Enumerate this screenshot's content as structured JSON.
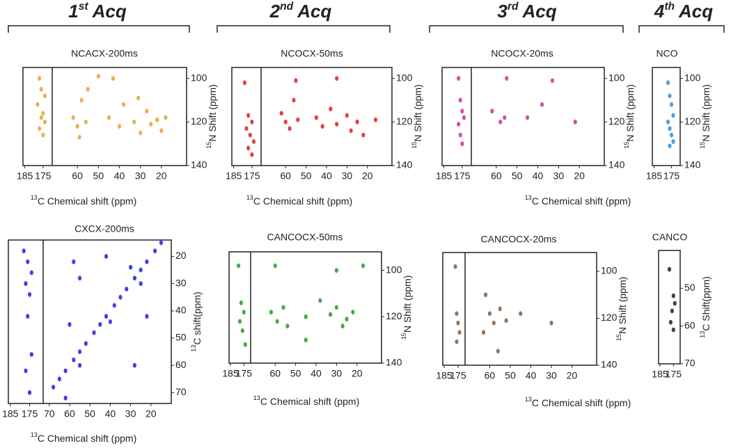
{
  "acq_headers": [
    {
      "number": "1",
      "suffix": "st",
      "text": "Acq"
    },
    {
      "number": "2",
      "suffix": "nd",
      "text": "Acq"
    },
    {
      "number": "3",
      "suffix": "rd",
      "text": "Acq"
    },
    {
      "number": "4",
      "suffix": "th",
      "text": "Acq"
    }
  ],
  "chart_data": [
    {
      "type": "scatter",
      "title": "NCACX-200ms",
      "xlabel": {
        "sup": "13",
        "text": "C Chemical shift (ppm)"
      },
      "ylabel": {
        "sup": "15",
        "text": "N Shift (ppm)"
      },
      "segments": [
        {
          "xlim": [
            186,
            170
          ],
          "xticks": [
            185,
            175
          ]
        },
        {
          "xlim": [
            72,
            8
          ],
          "xticks": [
            60,
            50,
            40,
            30,
            20
          ]
        }
      ],
      "ylim": [
        95,
        140
      ],
      "yticks": [
        100,
        120,
        140
      ],
      "color": "#e8a23a",
      "x": [
        177,
        176,
        174,
        178,
        175,
        176,
        174,
        177,
        175,
        62,
        60,
        58,
        56,
        55,
        45,
        40,
        38,
        33,
        30,
        27,
        25,
        22,
        20,
        18,
        43,
        50,
        59,
        31
      ],
      "y": [
        100,
        105,
        108,
        112,
        116,
        118,
        120,
        123,
        126,
        118,
        122,
        110,
        120,
        105,
        118,
        122,
        112,
        120,
        125,
        115,
        121,
        119,
        124,
        118,
        100,
        99,
        127,
        109
      ]
    },
    {
      "type": "scatter",
      "title": "NCOCX-50ms",
      "xlabel": {
        "sup": "13",
        "text": "C Chemical shift (ppm)"
      },
      "ylabel": {
        "sup": "15",
        "text": "N Shift (ppm)"
      },
      "segments": [
        {
          "xlim": [
            186,
            170
          ],
          "xticks": [
            185,
            175
          ]
        },
        {
          "xlim": [
            72,
            8
          ],
          "xticks": [
            60,
            50,
            40,
            30,
            20
          ]
        }
      ],
      "ylim": [
        95,
        140
      ],
      "yticks": [
        100,
        120,
        140
      ],
      "color": "#e02020",
      "x": [
        179,
        177,
        175,
        178,
        176,
        174,
        177,
        175,
        62,
        60,
        58,
        56,
        54,
        45,
        42,
        38,
        35,
        30,
        28,
        25,
        22,
        16,
        55,
        35
      ],
      "y": [
        102,
        117,
        120,
        123,
        126,
        129,
        132,
        135,
        116,
        120,
        123,
        110,
        119,
        118,
        122,
        114,
        121,
        117,
        124,
        120,
        126,
        119,
        101,
        100
      ]
    },
    {
      "type": "scatter",
      "title": "NCOCX-20ms",
      "xlabel": {
        "sup": "13",
        "text": "C Chemical shift (ppm)"
      },
      "ylabel": {
        "sup": "15",
        "text": "N Shift (ppm)"
      },
      "segments": [
        {
          "xlim": [
            186,
            170
          ],
          "xticks": [
            185,
            175
          ]
        },
        {
          "xlim": [
            72,
            8
          ],
          "xticks": [
            60,
            50,
            40,
            30,
            20
          ]
        }
      ],
      "ylim": [
        95,
        140
      ],
      "yticks": [
        100,
        120,
        140
      ],
      "color": "#d0309a",
      "x": [
        177,
        176,
        175,
        174,
        177,
        176,
        175,
        62,
        58,
        56,
        55,
        45,
        38,
        33,
        22
      ],
      "y": [
        100,
        110,
        115,
        118,
        121,
        126,
        130,
        115,
        120,
        118,
        100,
        118,
        112,
        101,
        120
      ]
    },
    {
      "type": "scatter",
      "title": "NCO",
      "ylabel": {
        "sup": "15",
        "text": "N Shift (ppm)"
      },
      "segments": [
        {
          "xlim": [
            186,
            170
          ],
          "xticks": [
            185,
            175
          ]
        }
      ],
      "ylim": [
        95,
        140
      ],
      "yticks": [
        100,
        120,
        140
      ],
      "color": "#3090d8",
      "x": [
        177,
        176,
        175,
        174,
        177,
        176,
        175,
        174,
        176
      ],
      "y": [
        102,
        108,
        112,
        117,
        120,
        123,
        126,
        129,
        131
      ]
    },
    {
      "type": "scatter",
      "title": "CXCX-200ms",
      "xlabel": {
        "sup": "13",
        "text": "C Chemical shift (ppm)"
      },
      "ylabel": {
        "sup": "13",
        "text": "C shift(ppm)"
      },
      "segments": [
        {
          "xlim": [
            186,
            168
          ],
          "xticks": [
            185,
            175
          ]
        },
        {
          "xlim": [
            73,
            10
          ],
          "xticks": [
            70,
            60,
            50,
            40,
            30,
            20
          ]
        }
      ],
      "ylim": [
        14,
        74
      ],
      "yticks": [
        20,
        30,
        40,
        50,
        60,
        70
      ],
      "color": "#2020e0",
      "x": [
        178,
        176,
        174,
        177,
        175,
        176,
        174,
        177,
        175,
        68,
        65,
        62,
        58,
        55,
        52,
        48,
        45,
        42,
        38,
        35,
        32,
        28,
        25,
        22,
        18,
        15,
        58,
        55,
        42,
        40,
        30,
        25,
        22,
        60,
        55,
        28,
        62
      ],
      "y": [
        18,
        22,
        26,
        30,
        34,
        42,
        56,
        62,
        70,
        68,
        65,
        62,
        58,
        55,
        52,
        48,
        45,
        42,
        38,
        35,
        32,
        28,
        25,
        22,
        18,
        15,
        22,
        28,
        20,
        44,
        24,
        30,
        42,
        45,
        60,
        60,
        72
      ]
    },
    {
      "type": "scatter",
      "title": "CANCOCX-50ms",
      "xlabel": {
        "sup": "13",
        "text": "C Chemical shift (ppm)"
      },
      "ylabel": {
        "sup": "15",
        "text": "N Shift (ppm)"
      },
      "segments": [
        {
          "xlim": [
            186,
            170
          ],
          "xticks": [
            185,
            175
          ]
        },
        {
          "xlim": [
            72,
            8
          ],
          "xticks": [
            60,
            50,
            40,
            30,
            20
          ]
        }
      ],
      "ylim": [
        92,
        140
      ],
      "yticks": [
        100,
        120,
        140
      ],
      "color": "#2a9a2a",
      "x": [
        179,
        177,
        175,
        178,
        176,
        174,
        62,
        59,
        56,
        54,
        45,
        38,
        33,
        30,
        27,
        25,
        22,
        17,
        60,
        45,
        30
      ],
      "y": [
        98,
        114,
        118,
        122,
        126,
        132,
        118,
        122,
        116,
        124,
        120,
        113,
        119,
        116,
        124,
        121,
        118,
        98,
        98,
        130,
        100
      ]
    },
    {
      "type": "scatter",
      "title": "CANCOCX-20ms",
      "xlabel": {
        "sup": "13",
        "text": "C Chemical shift (ppm)"
      },
      "ylabel": {
        "sup": "15",
        "text": "N Shift (ppm)"
      },
      "segments": [
        {
          "xlim": [
            186,
            170
          ],
          "xticks": [
            185,
            175
          ]
        },
        {
          "xlim": [
            72,
            8
          ],
          "xticks": [
            60,
            50,
            40,
            30,
            20
          ]
        }
      ],
      "ylim": [
        92,
        140
      ],
      "yticks": [
        100,
        120,
        140
      ],
      "color": "#8a5a3a",
      "x": [
        177,
        176,
        175,
        174,
        176,
        62,
        60,
        58,
        55,
        52,
        63,
        56,
        45,
        30
      ],
      "y": [
        98,
        118,
        122,
        126,
        130,
        110,
        118,
        122,
        116,
        121,
        126,
        134,
        118,
        122
      ]
    },
    {
      "type": "scatter",
      "title": "CANCO",
      "ylabel": {
        "sup": "13",
        "text": "C Shift(ppm)"
      },
      "segments": [
        {
          "xlim": [
            186,
            170
          ],
          "xticks": [
            185,
            175
          ]
        }
      ],
      "ylim": [
        40,
        70
      ],
      "yticks": [
        50,
        60,
        70
      ],
      "color": "#222222",
      "x": [
        178,
        175,
        174,
        176,
        177,
        175
      ],
      "y": [
        45,
        52,
        54,
        56,
        59,
        61
      ]
    }
  ]
}
